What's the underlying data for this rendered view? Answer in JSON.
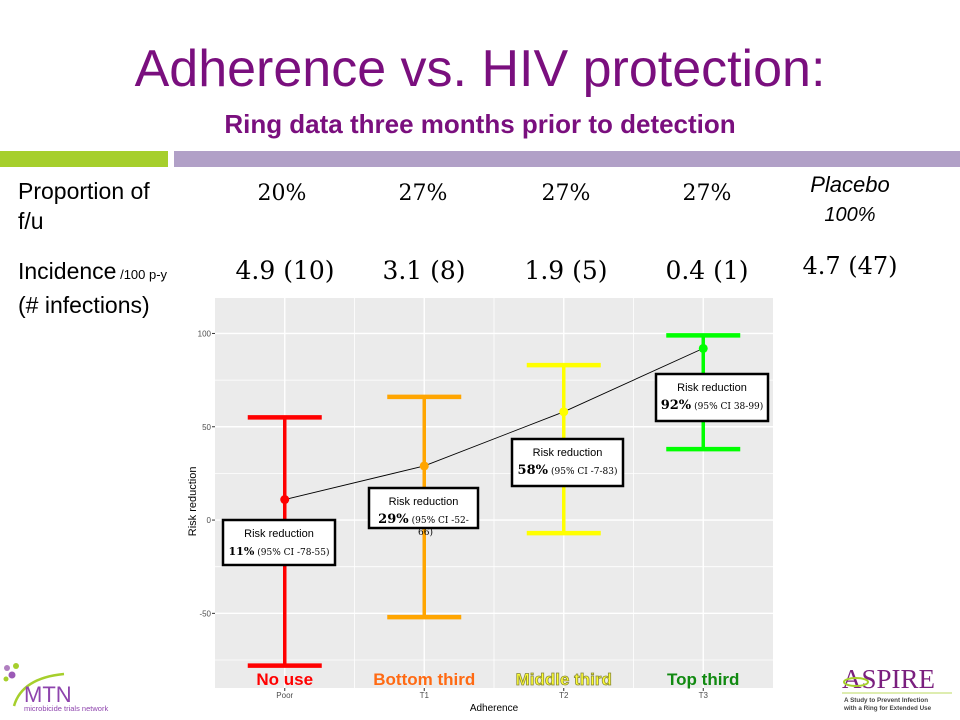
{
  "slide": {
    "title": "Adherence vs. HIV protection:",
    "subtitle": "Ring data three months prior to detection"
  },
  "table": {
    "row1_label_line1": "Proportion of",
    "row1_label_line2": "f/u",
    "row2_label_main": "Incidence",
    "row2_label_unit": " /100 p-y",
    "row2_label_line2": "(# infections)",
    "proportions": [
      "20%",
      "27%",
      "27%",
      "27%"
    ],
    "incidence": [
      "4.9 (10)",
      "3.1 (8)",
      "1.9 (5)",
      "0.4 (1)"
    ],
    "placebo_label": "Placebo",
    "placebo_proportion": "100%",
    "placebo_incidence": "4.7 (47)"
  },
  "logos": {
    "mtn_name": "MTN",
    "mtn_tagline": "microbicide trials network",
    "aspire_name": "ASPIRE",
    "aspire_tagline_1": "A Study to Prevent Infection",
    "aspire_tagline_2": "with a Ring for Extended Use"
  },
  "chart_data": {
    "type": "scatter",
    "title": "",
    "xlabel": "Adherence",
    "ylabel": "Risk reduction",
    "categories": [
      "Poor",
      "T1",
      "T2",
      "T3"
    ],
    "ylim": [
      -90,
      119
    ],
    "yticks": [
      -50,
      0,
      50,
      100
    ],
    "grid": true,
    "series": [
      {
        "name": "Risk reduction",
        "points": [
          {
            "x": "Poor",
            "y": 11,
            "ci_low": -78,
            "ci_high": 55,
            "color": "#ff0000",
            "group_label": "No use",
            "group_label_color": "#ff0000",
            "annotation_title": "Risk reduction",
            "annotation_value": "11%",
            "annotation_ci": "(95% CI -78-55)"
          },
          {
            "x": "T1",
            "y": 29,
            "ci_low": -52,
            "ci_high": 66,
            "color": "#ffa500",
            "group_label": "Bottom third",
            "group_label_color": "#ff6a13",
            "annotation_title": "Risk reduction",
            "annotation_value": "29%",
            "annotation_ci": "(95% CI -52-",
            "annotation_ci_overflow": "66)"
          },
          {
            "x": "T2",
            "y": 58,
            "ci_low": -7,
            "ci_high": 83,
            "color": "#ffff00",
            "group_label": "Middle third",
            "group_label_color": "#ffff33",
            "annotation_title": "Risk reduction",
            "annotation_value": "58%",
            "annotation_ci": "(95% CI -7-83)"
          },
          {
            "x": "T3",
            "y": 92,
            "ci_low": 38,
            "ci_high": 99,
            "color": "#00ff00",
            "group_label": "Top third",
            "group_label_color": "#118a11",
            "annotation_title": "Risk reduction",
            "annotation_value": "92%",
            "annotation_ci": "(95% CI 38-99)"
          }
        ]
      }
    ],
    "connecting_line": true,
    "legend": "none"
  }
}
